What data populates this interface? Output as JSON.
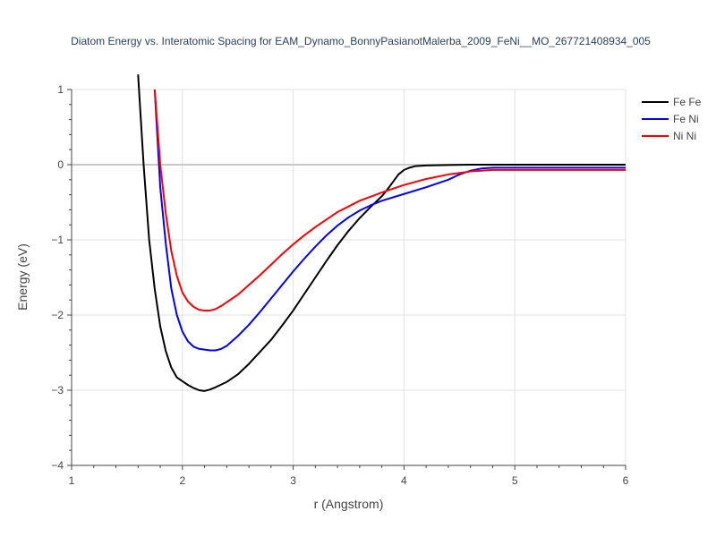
{
  "chart_data": {
    "type": "line",
    "title": "Diatom Energy vs. Interatomic Spacing for EAM_Dynamo_BonnyPasianotMalerba_2009_FeNi__MO_267721408934_005",
    "xlabel": "r (Angstrom)",
    "ylabel": "Energy (eV)",
    "xlim": [
      1,
      6
    ],
    "ylim": [
      -4,
      1
    ],
    "x_ticks": [
      1,
      2,
      3,
      4,
      5,
      6
    ],
    "y_ticks": [
      1,
      0,
      -1,
      -2,
      -3,
      -4
    ],
    "grid": true,
    "legend_position": "top-right",
    "series": [
      {
        "name": "Fe Fe",
        "color": "#000000",
        "x": [
          1.6,
          1.65,
          1.7,
          1.75,
          1.8,
          1.85,
          1.9,
          1.95,
          2.0,
          2.05,
          2.1,
          2.15,
          2.2,
          2.25,
          2.3,
          2.4,
          2.5,
          2.6,
          2.7,
          2.8,
          2.9,
          3.0,
          3.1,
          3.2,
          3.3,
          3.4,
          3.5,
          3.6,
          3.7,
          3.8,
          3.85,
          3.9,
          3.95,
          4.0,
          4.05,
          4.1,
          4.2,
          4.4,
          4.6,
          5.0,
          5.5,
          6.0
        ],
        "y": [
          1.2,
          0.0,
          -1.0,
          -1.65,
          -2.15,
          -2.48,
          -2.7,
          -2.83,
          -2.88,
          -2.93,
          -2.97,
          -3.0,
          -3.01,
          -2.99,
          -2.96,
          -2.89,
          -2.79,
          -2.65,
          -2.49,
          -2.33,
          -2.14,
          -1.94,
          -1.72,
          -1.5,
          -1.28,
          -1.07,
          -0.88,
          -0.71,
          -0.56,
          -0.42,
          -0.33,
          -0.23,
          -0.13,
          -0.07,
          -0.04,
          -0.02,
          -0.01,
          -0.005,
          0.0,
          0.0,
          0.0,
          0.0
        ]
      },
      {
        "name": "Fe Ni",
        "color": "#0000ff",
        "x": [
          1.75,
          1.8,
          1.85,
          1.9,
          1.95,
          2.0,
          2.05,
          2.1,
          2.15,
          2.2,
          2.25,
          2.3,
          2.35,
          2.4,
          2.5,
          2.6,
          2.7,
          2.8,
          2.9,
          3.0,
          3.1,
          3.2,
          3.3,
          3.4,
          3.5,
          3.6,
          3.7,
          3.8,
          4.0,
          4.2,
          4.4,
          4.5,
          4.6,
          4.7,
          4.8,
          5.0,
          5.5,
          6.0
        ],
        "y": [
          1.0,
          -0.3,
          -1.05,
          -1.65,
          -2.0,
          -2.22,
          -2.35,
          -2.42,
          -2.45,
          -2.46,
          -2.47,
          -2.47,
          -2.45,
          -2.41,
          -2.28,
          -2.13,
          -1.96,
          -1.78,
          -1.6,
          -1.42,
          -1.25,
          -1.09,
          -0.94,
          -0.81,
          -0.7,
          -0.61,
          -0.54,
          -0.48,
          -0.39,
          -0.3,
          -0.2,
          -0.13,
          -0.08,
          -0.05,
          -0.04,
          -0.04,
          -0.04,
          -0.04
        ]
      },
      {
        "name": "Ni Ni",
        "color": "#ff0000",
        "x": [
          1.75,
          1.8,
          1.85,
          1.9,
          1.95,
          2.0,
          2.05,
          2.1,
          2.15,
          2.2,
          2.25,
          2.3,
          2.35,
          2.4,
          2.5,
          2.6,
          2.7,
          2.8,
          2.9,
          3.0,
          3.1,
          3.2,
          3.4,
          3.6,
          3.8,
          4.0,
          4.2,
          4.4,
          4.6,
          4.8,
          5.0,
          5.5,
          6.0
        ],
        "y": [
          1.0,
          0.0,
          -0.65,
          -1.15,
          -1.48,
          -1.7,
          -1.82,
          -1.89,
          -1.93,
          -1.94,
          -1.94,
          -1.92,
          -1.88,
          -1.83,
          -1.73,
          -1.6,
          -1.47,
          -1.33,
          -1.19,
          -1.06,
          -0.94,
          -0.83,
          -0.63,
          -0.48,
          -0.37,
          -0.27,
          -0.19,
          -0.13,
          -0.09,
          -0.07,
          -0.07,
          -0.07,
          -0.07
        ]
      }
    ]
  }
}
